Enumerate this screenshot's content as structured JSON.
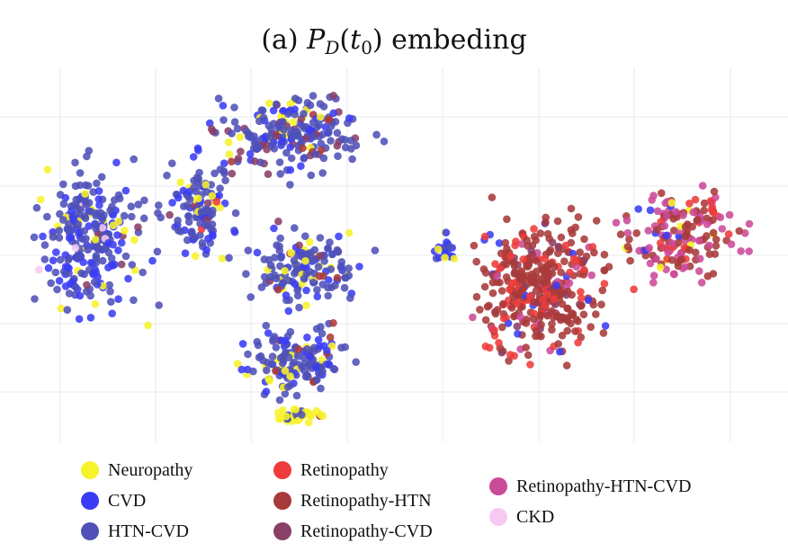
{
  "chart_data": {
    "type": "scatter",
    "title": "(a) P_D(t_0) embeding",
    "title_parts": {
      "prefix": "(a) ",
      "main": "P",
      "sub1": "D",
      "paren_open": "(",
      "t": "t",
      "sub2": "0",
      "paren_close": ")",
      "suffix": " embeding"
    },
    "xlabel": "",
    "ylabel": "",
    "grid": true,
    "legend_position": "bottom",
    "series": [
      {
        "name": "Neuropathy",
        "color": "#f7f32a"
      },
      {
        "name": "CVD",
        "color": "#3a3cf5"
      },
      {
        "name": "HTN-CVD",
        "color": "#4f51b8"
      },
      {
        "name": "Retinopathy",
        "color": "#ef3b3b"
      },
      {
        "name": "Retinopathy-HTN",
        "color": "#a93a3a"
      },
      {
        "name": "Retinopathy-CVD",
        "color": "#8a3f66"
      },
      {
        "name": "Retinopathy-HTN-CVD",
        "color": "#cc4a9a"
      },
      {
        "name": "CKD",
        "color": "#f7c9f2"
      }
    ],
    "clusters": [
      {
        "label": "left cluster",
        "dominant_series": [
          "HTN-CVD",
          "CVD",
          "Neuropathy"
        ]
      },
      {
        "label": "right cluster",
        "dominant_series": [
          "Retinopathy-HTN",
          "Retinopathy",
          "Retinopathy-HTN-CVD"
        ]
      }
    ]
  }
}
